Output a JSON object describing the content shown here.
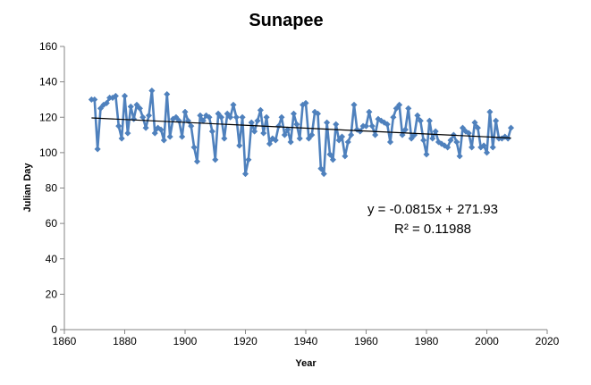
{
  "chart_data": {
    "type": "line",
    "title": "Sunapee",
    "xlabel": "Year",
    "ylabel": "Julian Day",
    "xlim": [
      1860,
      2020
    ],
    "ylim": [
      0,
      160
    ],
    "xticks": [
      "1860",
      "1880",
      "1900",
      "1920",
      "1940",
      "1960",
      "1980",
      "2000",
      "2020"
    ],
    "yticks": [
      "0",
      "20",
      "40",
      "60",
      "80",
      "100",
      "120",
      "140",
      "160"
    ],
    "grid": false,
    "legend": "none",
    "series": [
      {
        "color": "#4F81BD",
        "marker": "diamond",
        "x": [
          1869,
          1870,
          1871,
          1872,
          1873,
          1874,
          1875,
          1876,
          1877,
          1878,
          1879,
          1880,
          1881,
          1882,
          1883,
          1884,
          1885,
          1886,
          1887,
          1888,
          1889,
          1890,
          1891,
          1892,
          1893,
          1894,
          1895,
          1896,
          1897,
          1898,
          1899,
          1900,
          1901,
          1902,
          1903,
          1904,
          1905,
          1906,
          1907,
          1908,
          1909,
          1910,
          1911,
          1912,
          1913,
          1914,
          1915,
          1916,
          1917,
          1918,
          1919,
          1920,
          1921,
          1922,
          1923,
          1924,
          1925,
          1926,
          1927,
          1928,
          1929,
          1930,
          1931,
          1932,
          1933,
          1934,
          1935,
          1936,
          1937,
          1938,
          1939,
          1940,
          1941,
          1942,
          1943,
          1944,
          1945,
          1946,
          1947,
          1948,
          1949,
          1950,
          1951,
          1952,
          1953,
          1954,
          1955,
          1956,
          1957,
          1958,
          1959,
          1960,
          1961,
          1962,
          1963,
          1964,
          1965,
          1966,
          1967,
          1968,
          1969,
          1970,
          1971,
          1972,
          1973,
          1974,
          1975,
          1976,
          1977,
          1978,
          1979,
          1980,
          1981,
          1982,
          1983,
          1984,
          1985,
          1986,
          1987,
          1988,
          1989,
          1990,
          1991,
          1992,
          1993,
          1994,
          1995,
          1996,
          1997,
          1998,
          1999,
          2000,
          2001,
          2002,
          2003,
          2004,
          2005,
          2006,
          2007,
          2008
        ],
        "y": [
          130,
          130,
          102,
          125,
          127,
          128,
          131,
          131,
          132,
          115,
          108,
          132,
          111,
          126,
          119,
          127,
          125,
          120,
          114,
          121,
          135,
          111,
          114,
          113,
          107,
          133,
          109,
          119,
          120,
          118,
          109,
          123,
          118,
          115,
          103,
          95,
          121,
          118,
          121,
          120,
          112,
          96,
          122,
          120,
          108,
          122,
          120,
          127,
          120,
          104,
          120,
          88,
          96,
          117,
          112,
          118,
          124,
          111,
          120,
          105,
          108,
          107,
          115,
          120,
          110,
          113,
          106,
          122,
          116,
          108,
          127,
          128,
          108,
          110,
          123,
          122,
          91,
          88,
          117,
          99,
          96,
          116,
          107,
          109,
          98,
          106,
          110,
          127,
          113,
          112,
          115,
          115,
          123,
          115,
          110,
          119,
          118,
          117,
          116,
          106,
          120,
          125,
          127,
          110,
          113,
          125,
          108,
          110,
          121,
          118,
          107,
          99,
          118,
          108,
          112,
          106,
          105,
          104,
          103,
          107,
          110,
          106,
          98,
          114,
          112,
          111,
          103,
          117,
          114,
          103,
          104,
          100,
          123,
          103,
          118,
          108,
          108,
          109,
          108,
          114
        ]
      }
    ],
    "trendline": {
      "slope": -0.0815,
      "intercept": 271.93,
      "x_range": [
        1869,
        2008
      ],
      "color": "#000000"
    },
    "annotations": {
      "equation": "y = -0.0815x + 271.93",
      "r_squared": "R² = 0.11988"
    }
  }
}
